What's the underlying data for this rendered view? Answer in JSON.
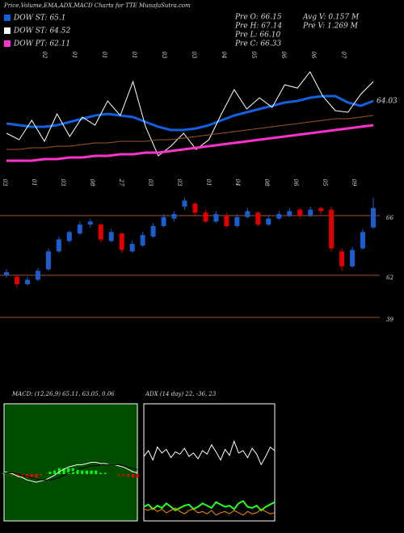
{
  "title": "Price,Volume,EMA,ADX,MACD Charts for TTE MunafaSutra.com",
  "info": [
    "Pre O: 66.15",
    "Pre H: 67.14",
    "Pre L: 66.10",
    "Pre C: 66.33",
    "Avg V: 0.157 M",
    "Pre V: 1.269 M"
  ],
  "top_date_labels": [
    "02",
    "01",
    "01",
    "01",
    "03",
    "03",
    "04",
    "05",
    "06",
    "06",
    "07"
  ],
  "mid_date_labels": [
    "03",
    "01",
    "03",
    "08",
    "27",
    "03",
    "03",
    "01",
    "04",
    "08",
    "06",
    "05",
    "09"
  ],
  "chart_data": [
    {
      "type": "line",
      "ylim": [
        59,
        67
      ],
      "annotation": "64.03",
      "series": [
        {
          "name": "DOW ST: 65.1",
          "color": "#1560e0",
          "width": 3,
          "values": [
            62.6,
            62.5,
            62.4,
            62.4,
            62.5,
            62.7,
            62.9,
            63.1,
            63.2,
            63.1,
            63.0,
            62.7,
            62.4,
            62.2,
            62.2,
            62.3,
            62.5,
            62.8,
            63.1,
            63.3,
            63.5,
            63.7,
            63.9,
            64.0,
            64.2,
            64.3,
            64.3,
            63.9,
            63.7,
            64.0
          ]
        },
        {
          "name": "DOW ST: 64.52",
          "color": "#ffffff",
          "width": 1,
          "values": [
            62.0,
            61.6,
            62.8,
            61.5,
            63.2,
            61.8,
            63.0,
            62.5,
            64.0,
            63.1,
            65.2,
            62.4,
            60.6,
            61.2,
            62.0,
            61.0,
            61.6,
            63.2,
            64.7,
            63.5,
            64.2,
            63.6,
            65.0,
            64.8,
            65.8,
            64.3,
            63.4,
            63.3,
            64.4,
            65.2
          ]
        },
        {
          "color": "#a0522d",
          "width": 1,
          "values": [
            61.0,
            61.0,
            61.1,
            61.1,
            61.2,
            61.2,
            61.3,
            61.4,
            61.4,
            61.5,
            61.5,
            61.5,
            61.6,
            61.6,
            61.7,
            61.8,
            61.9,
            62.0,
            62.1,
            62.2,
            62.3,
            62.4,
            62.5,
            62.6,
            62.7,
            62.8,
            62.9,
            62.9,
            63.0,
            63.1
          ]
        },
        {
          "name": "DOW PT: 62.11",
          "color": "#ff33cc",
          "width": 3,
          "values": [
            60.3,
            60.3,
            60.3,
            60.4,
            60.4,
            60.5,
            60.5,
            60.6,
            60.6,
            60.7,
            60.7,
            60.8,
            60.8,
            60.9,
            61.0,
            61.1,
            61.2,
            61.3,
            61.4,
            61.5,
            61.6,
            61.7,
            61.8,
            61.9,
            62.0,
            62.1,
            62.2,
            62.3,
            62.4,
            62.5
          ]
        }
      ]
    },
    {
      "type": "candlestick",
      "ylim": [
        58.8,
        68
      ],
      "yticks": [
        66,
        62
      ],
      "annotation": "39",
      "up_color": "#1a5fd0",
      "down_color": "#e00000",
      "open": [
        62.0,
        61.9,
        61.4,
        61.7,
        62.4,
        63.6,
        64.3,
        64.8,
        65.4,
        65.4,
        64.3,
        64.8,
        63.6,
        64.0,
        64.6,
        65.3,
        65.8,
        66.6,
        66.8,
        66.2,
        65.6,
        66.0,
        65.3,
        65.9,
        66.2,
        65.4,
        65.8,
        66.0,
        66.4,
        66.0,
        66.5,
        66.4,
        63.6,
        62.6,
        63.8,
        65.2
      ],
      "high": [
        62.4,
        62.0,
        61.9,
        62.5,
        63.8,
        64.6,
        65.0,
        65.6,
        65.8,
        65.5,
        65.1,
        64.9,
        64.3,
        64.9,
        65.5,
        66.1,
        66.3,
        67.2,
        66.9,
        66.4,
        66.3,
        66.2,
        66.1,
        66.5,
        66.3,
        66.0,
        66.3,
        66.5,
        66.5,
        66.6,
        66.6,
        66.6,
        63.8,
        63.9,
        65.1,
        67.2
      ],
      "low": [
        61.8,
        61.2,
        61.3,
        61.6,
        62.3,
        63.5,
        64.2,
        64.7,
        65.2,
        64.2,
        64.2,
        63.5,
        63.5,
        63.9,
        64.5,
        65.2,
        65.6,
        66.4,
        66.0,
        65.5,
        65.5,
        65.2,
        65.2,
        65.8,
        65.3,
        65.3,
        65.7,
        65.9,
        65.8,
        65.9,
        66.1,
        63.6,
        62.3,
        62.5,
        63.7,
        65.1
      ],
      "close": [
        62.2,
        61.4,
        61.7,
        62.3,
        63.6,
        64.4,
        64.9,
        65.4,
        65.6,
        64.4,
        64.9,
        63.7,
        64.1,
        64.7,
        65.3,
        65.9,
        66.1,
        67.0,
        66.2,
        65.6,
        66.1,
        65.3,
        65.9,
        66.3,
        65.4,
        65.8,
        66.1,
        66.3,
        66.0,
        66.4,
        66.3,
        63.8,
        62.6,
        63.7,
        64.9,
        66.5
      ]
    },
    {
      "type": "macd",
      "title": "MACD: (12,26,9) 65.11, 63.05, 0.06",
      "ylim": [
        -4,
        6
      ],
      "background": "#004d00",
      "pos_color": "#00ff00",
      "neg_color": "#ff0000",
      "series": [
        {
          "color": "#ffffff",
          "values": [
            0.2,
            0.1,
            0,
            -0.2,
            -0.3,
            -0.5,
            -0.6,
            -0.7,
            -0.6,
            -0.5,
            -0.3,
            -0.1,
            0.2,
            0.4,
            0.6,
            0.7,
            0.8,
            0.8,
            0.9,
            1.0,
            1.0,
            0.9,
            0.9,
            0.8,
            0.8,
            0.7,
            0.6,
            0.4,
            0.2,
            0.1
          ]
        },
        {
          "color": "#000000",
          "values": [
            0.1,
            0.1,
            0.1,
            0,
            -0.1,
            -0.2,
            -0.3,
            -0.4,
            -0.5,
            -0.5,
            -0.5,
            -0.4,
            -0.3,
            -0.1,
            0.1,
            0.2,
            0.4,
            0.5,
            0.6,
            0.7,
            0.7,
            0.8,
            0.8,
            0.8,
            0.8,
            0.8,
            0.7,
            0.6,
            0.5,
            0.4
          ]
        }
      ],
      "histogram": [
        0.1,
        0,
        -0.1,
        -0.2,
        -0.2,
        -0.3,
        -0.3,
        -0.3,
        -0.1,
        0,
        0.2,
        0.3,
        0.5,
        0.5,
        0.5,
        0.5,
        0.4,
        0.3,
        0.3,
        0.3,
        0.3,
        0.1,
        0.1,
        0,
        0,
        -0.1,
        -0.1,
        -0.2,
        -0.3,
        -0.3
      ]
    },
    {
      "type": "adx",
      "title": "ADX (14 day) 22, -36, 23",
      "ylim": [
        0,
        100
      ],
      "background": "#000000",
      "series": [
        {
          "color": "#ffffff",
          "values": [
            55,
            60,
            52,
            63,
            58,
            61,
            54,
            59,
            57,
            62,
            55,
            58,
            53,
            60,
            57,
            65,
            59,
            52,
            61,
            56,
            68,
            58,
            60,
            54,
            62,
            57,
            48,
            55,
            63,
            60
          ]
        },
        {
          "color": "#22ff22",
          "values": [
            12,
            14,
            10,
            13,
            11,
            15,
            12,
            9,
            11,
            13,
            14,
            10,
            12,
            15,
            13,
            11,
            16,
            14,
            12,
            13,
            10,
            15,
            17,
            12,
            11,
            13,
            9,
            12,
            14,
            16
          ]
        },
        {
          "color": "#ff8c00",
          "values": [
            10,
            9,
            11,
            8,
            10,
            7,
            9,
            11,
            8,
            6,
            9,
            10,
            7,
            8,
            6,
            9,
            5,
            7,
            8,
            6,
            9,
            7,
            5,
            8,
            6,
            7,
            10,
            8,
            6,
            7
          ]
        }
      ]
    }
  ]
}
